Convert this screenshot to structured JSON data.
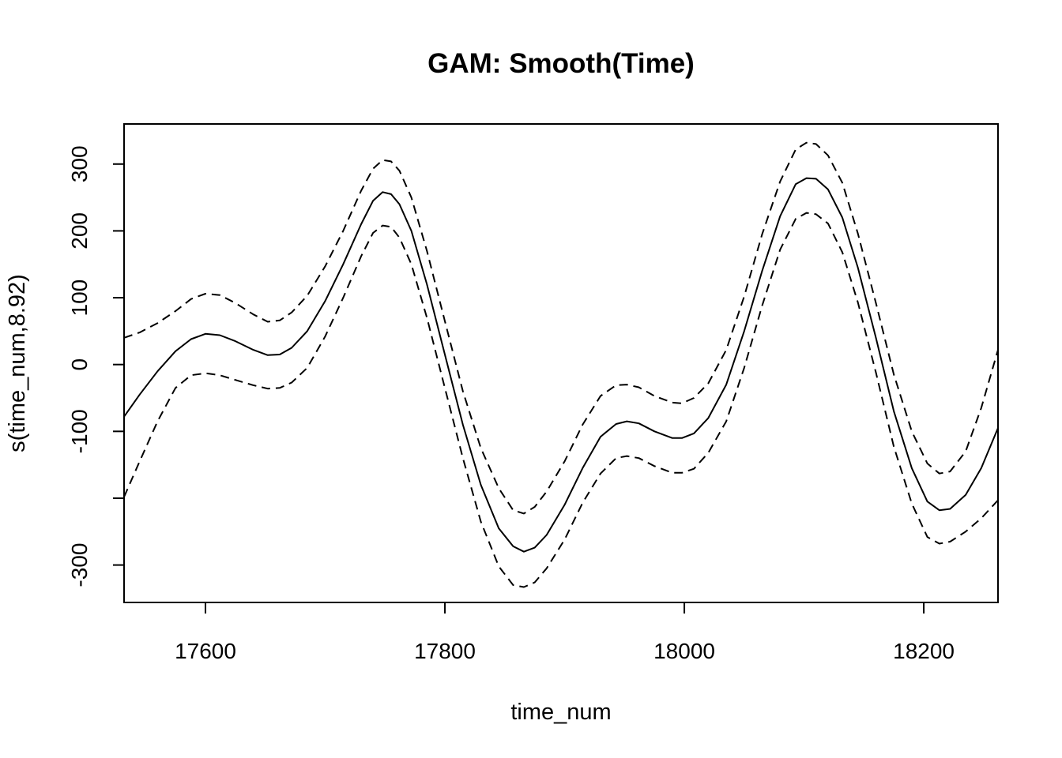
{
  "chart_data": {
    "type": "line",
    "title": "GAM: Smooth(Time)",
    "xlabel": "time_num",
    "ylabel": "s(time_num,8.92)",
    "xlim": [
      17532,
      18262
    ],
    "ylim": [
      -356,
      360
    ],
    "x_ticks": [
      17600,
      17800,
      18000,
      18200
    ],
    "x_tick_labels": [
      "17600",
      "17800",
      "18000",
      "18200"
    ],
    "y_ticks": [
      -300,
      -200,
      -100,
      0,
      100,
      200,
      300
    ],
    "y_tick_labels": [
      "-300",
      "",
      "-100",
      "0",
      "100",
      "200",
      "300"
    ],
    "grid": false,
    "legend": "none",
    "series": [
      {
        "style": "solid",
        "color": "#000000",
        "points": [
          [
            17532,
            -78
          ],
          [
            17545,
            -45
          ],
          [
            17560,
            -10
          ],
          [
            17575,
            20
          ],
          [
            17588,
            38
          ],
          [
            17600,
            46
          ],
          [
            17612,
            44
          ],
          [
            17625,
            35
          ],
          [
            17640,
            22
          ],
          [
            17652,
            14
          ],
          [
            17662,
            15
          ],
          [
            17672,
            25
          ],
          [
            17685,
            50
          ],
          [
            17700,
            95
          ],
          [
            17715,
            150
          ],
          [
            17730,
            210
          ],
          [
            17740,
            245
          ],
          [
            17748,
            258
          ],
          [
            17755,
            255
          ],
          [
            17762,
            240
          ],
          [
            17772,
            200
          ],
          [
            17785,
            120
          ],
          [
            17800,
            15
          ],
          [
            17815,
            -90
          ],
          [
            17830,
            -180
          ],
          [
            17845,
            -245
          ],
          [
            17857,
            -272
          ],
          [
            17866,
            -280
          ],
          [
            17875,
            -274
          ],
          [
            17885,
            -255
          ],
          [
            17900,
            -210
          ],
          [
            17915,
            -155
          ],
          [
            17930,
            -108
          ],
          [
            17943,
            -89
          ],
          [
            17952,
            -85
          ],
          [
            17962,
            -88
          ],
          [
            17975,
            -100
          ],
          [
            17990,
            -110
          ],
          [
            17998,
            -110
          ],
          [
            18008,
            -103
          ],
          [
            18020,
            -80
          ],
          [
            18035,
            -30
          ],
          [
            18050,
            50
          ],
          [
            18065,
            140
          ],
          [
            18080,
            222
          ],
          [
            18093,
            270
          ],
          [
            18102,
            279
          ],
          [
            18110,
            278
          ],
          [
            18120,
            262
          ],
          [
            18132,
            220
          ],
          [
            18145,
            145
          ],
          [
            18160,
            40
          ],
          [
            18175,
            -70
          ],
          [
            18190,
            -155
          ],
          [
            18203,
            -205
          ],
          [
            18213,
            -218
          ],
          [
            18222,
            -216
          ],
          [
            18235,
            -195
          ],
          [
            18248,
            -155
          ],
          [
            18262,
            -95
          ]
        ]
      },
      {
        "style": "dashed",
        "color": "#000000",
        "points": [
          [
            17532,
            40
          ],
          [
            17545,
            48
          ],
          [
            17560,
            62
          ],
          [
            17575,
            80
          ],
          [
            17588,
            98
          ],
          [
            17600,
            106
          ],
          [
            17612,
            104
          ],
          [
            17625,
            92
          ],
          [
            17640,
            75
          ],
          [
            17652,
            64
          ],
          [
            17662,
            66
          ],
          [
            17672,
            78
          ],
          [
            17685,
            103
          ],
          [
            17700,
            147
          ],
          [
            17715,
            200
          ],
          [
            17730,
            260
          ],
          [
            17740,
            293
          ],
          [
            17748,
            306
          ],
          [
            17755,
            304
          ],
          [
            17762,
            290
          ],
          [
            17772,
            250
          ],
          [
            17785,
            170
          ],
          [
            17800,
            65
          ],
          [
            17815,
            -40
          ],
          [
            17830,
            -125
          ],
          [
            17845,
            -185
          ],
          [
            17857,
            -218
          ],
          [
            17866,
            -223
          ],
          [
            17875,
            -213
          ],
          [
            17885,
            -190
          ],
          [
            17900,
            -145
          ],
          [
            17915,
            -90
          ],
          [
            17930,
            -47
          ],
          [
            17943,
            -31
          ],
          [
            17952,
            -30
          ],
          [
            17962,
            -34
          ],
          [
            17975,
            -47
          ],
          [
            17990,
            -57
          ],
          [
            17998,
            -58
          ],
          [
            18008,
            -50
          ],
          [
            18020,
            -28
          ],
          [
            18035,
            22
          ],
          [
            18050,
            102
          ],
          [
            18065,
            195
          ],
          [
            18080,
            274
          ],
          [
            18093,
            322
          ],
          [
            18102,
            332
          ],
          [
            18110,
            330
          ],
          [
            18120,
            313
          ],
          [
            18132,
            272
          ],
          [
            18145,
            196
          ],
          [
            18160,
            92
          ],
          [
            18175,
            -15
          ],
          [
            18190,
            -100
          ],
          [
            18203,
            -148
          ],
          [
            18213,
            -163
          ],
          [
            18222,
            -160
          ],
          [
            18235,
            -130
          ],
          [
            18248,
            -65
          ],
          [
            18262,
            22
          ]
        ]
      },
      {
        "style": "dashed",
        "color": "#000000",
        "points": [
          [
            17532,
            -198
          ],
          [
            17545,
            -145
          ],
          [
            17560,
            -85
          ],
          [
            17575,
            -35
          ],
          [
            17588,
            -16
          ],
          [
            17600,
            -13
          ],
          [
            17612,
            -16
          ],
          [
            17625,
            -23
          ],
          [
            17640,
            -31
          ],
          [
            17652,
            -36
          ],
          [
            17662,
            -35
          ],
          [
            17672,
            -27
          ],
          [
            17685,
            -5
          ],
          [
            17700,
            42
          ],
          [
            17715,
            100
          ],
          [
            17730,
            162
          ],
          [
            17740,
            197
          ],
          [
            17748,
            208
          ],
          [
            17755,
            206
          ],
          [
            17762,
            190
          ],
          [
            17772,
            150
          ],
          [
            17785,
            70
          ],
          [
            17800,
            -35
          ],
          [
            17815,
            -140
          ],
          [
            17830,
            -235
          ],
          [
            17845,
            -302
          ],
          [
            17857,
            -330
          ],
          [
            17866,
            -333
          ],
          [
            17875,
            -326
          ],
          [
            17885,
            -305
          ],
          [
            17900,
            -262
          ],
          [
            17915,
            -207
          ],
          [
            17930,
            -163
          ],
          [
            17943,
            -140
          ],
          [
            17952,
            -137
          ],
          [
            17962,
            -140
          ],
          [
            17975,
            -152
          ],
          [
            17990,
            -162
          ],
          [
            17998,
            -162
          ],
          [
            18008,
            -156
          ],
          [
            18020,
            -132
          ],
          [
            18035,
            -85
          ],
          [
            18050,
            -5
          ],
          [
            18065,
            88
          ],
          [
            18080,
            172
          ],
          [
            18093,
            218
          ],
          [
            18102,
            227
          ],
          [
            18110,
            225
          ],
          [
            18120,
            211
          ],
          [
            18132,
            168
          ],
          [
            18145,
            93
          ],
          [
            18160,
            -12
          ],
          [
            18175,
            -123
          ],
          [
            18190,
            -208
          ],
          [
            18203,
            -258
          ],
          [
            18213,
            -268
          ],
          [
            18222,
            -265
          ],
          [
            18235,
            -250
          ],
          [
            18248,
            -230
          ],
          [
            18262,
            -203
          ]
        ]
      }
    ]
  }
}
